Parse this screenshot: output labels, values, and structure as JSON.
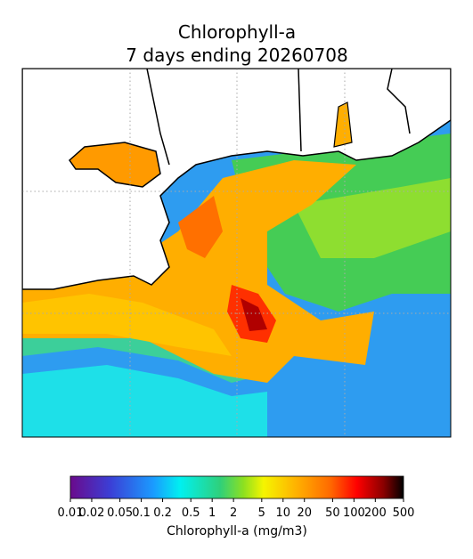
{
  "title": [
    "Chlorophyll-a",
    "7 days ending 20260708"
  ],
  "colorbar": {
    "label": "Chlorophyll-a (mg/m3)",
    "scale": "log",
    "lim": [
      0.01,
      500
    ],
    "ticks": [
      0.01,
      0.02,
      0.05,
      0.1,
      0.2,
      0.5,
      1,
      2,
      5,
      10,
      20,
      50,
      100,
      200,
      500
    ]
  }
}
